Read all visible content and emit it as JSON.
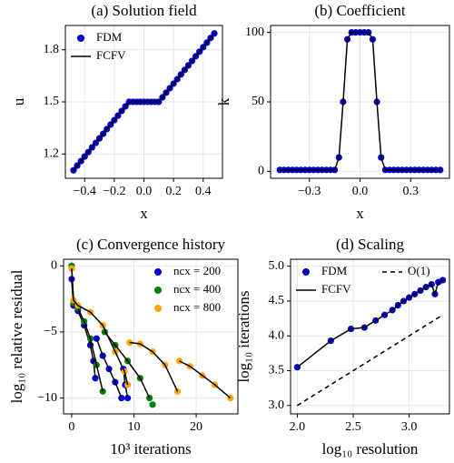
{
  "chart_data": [
    {
      "type": "scatter",
      "title": "(a) Solution field",
      "xlabel": "x",
      "ylabel": "u",
      "x": [
        -0.475,
        -0.45,
        -0.425,
        -0.4,
        -0.375,
        -0.35,
        -0.325,
        -0.3,
        -0.275,
        -0.25,
        -0.225,
        -0.2,
        -0.175,
        -0.15,
        -0.125,
        -0.1,
        -0.075,
        -0.05,
        -0.025,
        0,
        0.025,
        0.05,
        0.075,
        0.1,
        0.125,
        0.15,
        0.175,
        0.2,
        0.225,
        0.25,
        0.275,
        0.3,
        0.325,
        0.35,
        0.375,
        0.4,
        0.425,
        0.45,
        0.475
      ],
      "series": [
        {
          "name": "FDM",
          "color": "#0000cc",
          "mode": "markers",
          "values": [
            1.106,
            1.133,
            1.159,
            1.185,
            1.211,
            1.238,
            1.264,
            1.29,
            1.316,
            1.343,
            1.369,
            1.395,
            1.421,
            1.448,
            1.474,
            1.5,
            1.5,
            1.5,
            1.5,
            1.5,
            1.5,
            1.5,
            1.5,
            1.5,
            1.526,
            1.553,
            1.579,
            1.605,
            1.631,
            1.658,
            1.684,
            1.71,
            1.736,
            1.763,
            1.789,
            1.815,
            1.841,
            1.868,
            1.894
          ]
        },
        {
          "name": "FCFV",
          "color": "#000000",
          "mode": "line",
          "values": [
            1.106,
            1.133,
            1.159,
            1.185,
            1.211,
            1.238,
            1.264,
            1.29,
            1.316,
            1.343,
            1.369,
            1.395,
            1.421,
            1.448,
            1.474,
            1.5,
            1.5,
            1.5,
            1.5,
            1.5,
            1.5,
            1.5,
            1.5,
            1.5,
            1.526,
            1.553,
            1.579,
            1.605,
            1.631,
            1.658,
            1.684,
            1.71,
            1.736,
            1.763,
            1.789,
            1.815,
            1.841,
            1.868,
            1.894
          ]
        }
      ],
      "xlim": [
        -0.53,
        0.53
      ],
      "ylim": [
        1.06,
        1.94
      ],
      "xticks": [
        {
          "value": -0.4,
          "label": "−0.4"
        },
        {
          "value": -0.2,
          "label": "−0.2"
        },
        {
          "value": 0,
          "label": "0.0"
        },
        {
          "value": 0.2,
          "label": "0.2"
        },
        {
          "value": 0.4,
          "label": "0.4"
        }
      ],
      "yticks": [
        1.2,
        1.5,
        1.8
      ],
      "grid": true,
      "legend": "upper left"
    },
    {
      "type": "scatter",
      "title": "(b) Coefficient",
      "xlabel": "x",
      "ylabel": "k",
      "x": [
        -0.475,
        -0.45,
        -0.425,
        -0.4,
        -0.375,
        -0.35,
        -0.325,
        -0.3,
        -0.275,
        -0.25,
        -0.225,
        -0.2,
        -0.175,
        -0.15,
        -0.125,
        -0.1,
        -0.075,
        -0.05,
        -0.025,
        0,
        0.025,
        0.05,
        0.075,
        0.1,
        0.125,
        0.15,
        0.175,
        0.2,
        0.225,
        0.25,
        0.275,
        0.3,
        0.325,
        0.35,
        0.375,
        0.4,
        0.425,
        0.45,
        0.475
      ],
      "series": [
        {
          "name": "FDM",
          "color": "#0000cc",
          "mode": "markers+line",
          "line_color": "#000000",
          "values": [
            1,
            1,
            1,
            1,
            1,
            1,
            1,
            1,
            1,
            1,
            1,
            1,
            1,
            1,
            10,
            50,
            95,
            100,
            100,
            100,
            100,
            100,
            95,
            50,
            10,
            1,
            1,
            1,
            1,
            1,
            1,
            1,
            1,
            1,
            1,
            1,
            1,
            1,
            1
          ]
        }
      ],
      "xlim": [
        -0.53,
        0.53
      ],
      "ylim": [
        -5,
        105
      ],
      "xticks": [
        {
          "value": -0.3,
          "label": "−0.3"
        },
        {
          "value": 0,
          "label": "0.0"
        },
        {
          "value": 0.3,
          "label": "0.3"
        }
      ],
      "yticks": [
        0,
        50,
        100
      ],
      "grid": true
    },
    {
      "type": "line",
      "title": "(c) Convergence history",
      "xlabel": "10³ iterations",
      "ylabel": "log₁₀ relative residual",
      "series": [
        {
          "name": "ncx = 200",
          "color": "#0000ee",
          "mode": "markers+line",
          "line_color": "#000000",
          "x": [
            0,
            0.3,
            1,
            2,
            3,
            3.5,
            3.8,
            3.8,
            4,
            5,
            6,
            7,
            8,
            8,
            8.3,
            8.6,
            9
          ],
          "values": [
            -1,
            -3,
            -3.4,
            -4.5,
            -6,
            -7.2,
            -8.5,
            null,
            -5.5,
            -6.8,
            -7.8,
            -8.8,
            -10,
            null,
            -7.8,
            -9,
            -10
          ]
        },
        {
          "name": "ncx = 400",
          "color": "#008000",
          "mode": "markers+line",
          "line_color": "#000000",
          "x": [
            0,
            0.3,
            1,
            2,
            3,
            4,
            5,
            5,
            5.3,
            7,
            9,
            11,
            12.5,
            12.5,
            13
          ],
          "values": [
            0,
            -2.8,
            -3.2,
            -4.2,
            -5.5,
            -7.5,
            -9.5,
            null,
            -5,
            -6,
            -7.2,
            -8.5,
            -10,
            null,
            -10.5
          ]
        },
        {
          "name": "ncx = 800",
          "color": "#ffa500",
          "mode": "markers+line",
          "line_color": "#000000",
          "x": [
            0,
            0.3,
            1,
            3,
            5,
            7,
            8.5,
            9,
            9,
            9.3,
            11,
            13,
            15,
            17,
            17,
            17.3,
            19,
            21,
            23,
            25.5
          ],
          "values": [
            -0.2,
            -2.6,
            -3,
            -3.5,
            -4.5,
            -6.5,
            -8,
            -9,
            null,
            -5.8,
            -5.9,
            -6.5,
            -7.5,
            -9.5,
            null,
            -7.2,
            -7.6,
            -8.3,
            -9,
            -10
          ]
        }
      ],
      "xlim": [
        -1.3,
        26.7
      ],
      "ylim": [
        -11.2,
        0.5
      ],
      "xticks": [
        0,
        10,
        20
      ],
      "yticks": [
        0,
        {
          "value": -5,
          "label": "−5"
        },
        {
          "value": -10,
          "label": "−10"
        }
      ],
      "grid": true,
      "legend": "upper right"
    },
    {
      "type": "scatter",
      "title": "(d) Scaling",
      "xlabel": "log₁₀ resolution",
      "ylabel": "log₁₀ iterations",
      "series": [
        {
          "name": "FDM",
          "color": "#0000cc",
          "mode": "markers",
          "x": [
            2.0,
            2.3,
            2.48,
            2.6,
            2.7,
            2.78,
            2.85,
            2.9,
            2.95,
            3.0,
            3.05,
            3.1,
            3.15,
            3.2,
            3.23,
            3.26,
            3.3
          ],
          "values": [
            3.55,
            3.93,
            4.1,
            4.12,
            4.22,
            4.3,
            4.37,
            4.44,
            4.5,
            4.55,
            4.6,
            4.65,
            4.7,
            4.74,
            4.6,
            4.77,
            4.8
          ]
        },
        {
          "name": "FCFV",
          "color": "#000000",
          "mode": "line",
          "x": [
            2.0,
            2.3,
            2.48,
            2.6,
            2.7,
            2.78,
            2.85,
            2.9,
            2.95,
            3.0,
            3.05,
            3.1,
            3.15,
            3.2,
            3.23,
            3.26,
            3.3
          ],
          "values": [
            3.55,
            3.93,
            4.1,
            4.12,
            4.22,
            4.3,
            4.37,
            4.44,
            4.5,
            4.55,
            4.6,
            4.65,
            4.7,
            4.74,
            4.6,
            4.77,
            4.8
          ]
        },
        {
          "name": "O(1)",
          "color": "#000000",
          "mode": "dashed",
          "x": [
            2.0,
            3.3
          ],
          "values": [
            3.0,
            4.3
          ]
        }
      ],
      "xlim": [
        1.94,
        3.36
      ],
      "ylim": [
        2.88,
        5.1
      ],
      "xticks": [
        {
          "value": 2,
          "label": "2.0"
        },
        2.5,
        {
          "value": 3,
          "label": "3.0"
        }
      ],
      "yticks": [
        {
          "value": 3,
          "label": "3.0"
        },
        3.5,
        {
          "value": 4,
          "label": "4.0"
        },
        4.5,
        {
          "value": 5,
          "label": "5.0"
        }
      ],
      "grid": true,
      "legend": "upper left",
      "legend_columns": 2
    }
  ]
}
